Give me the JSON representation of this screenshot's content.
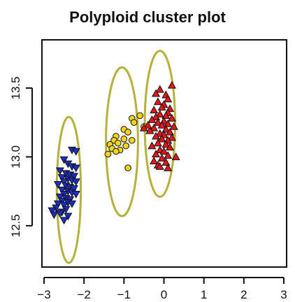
{
  "chart_data": {
    "type": "scatter",
    "title": "Polyploid cluster plot",
    "xlabel": "",
    "ylabel": "",
    "xlim": [
      -3,
      3
    ],
    "ylim": [
      12.2,
      13.85
    ],
    "x_ticks": [
      -3,
      -2,
      -1,
      0,
      1,
      2,
      3
    ],
    "x_tick_labels": [
      "−3",
      "−2",
      "−1",
      "0",
      "1",
      "2",
      "3"
    ],
    "y_ticks": [
      12.5,
      13.0,
      13.5
    ],
    "y_tick_labels": [
      "12.5",
      "13.0",
      "13.5"
    ],
    "grid": false,
    "ellipse_color": "#b5b23c",
    "series": [
      {
        "marker": "triangle-down",
        "color": "#1c2fc4",
        "points": [
          [
            -2.3,
            13.05
          ],
          [
            -2.2,
            13.04
          ],
          [
            -2.5,
            12.98
          ],
          [
            -2.4,
            12.95
          ],
          [
            -2.3,
            12.93
          ],
          [
            -2.2,
            12.92
          ],
          [
            -2.6,
            12.9
          ],
          [
            -2.45,
            12.88
          ],
          [
            -2.35,
            12.87
          ],
          [
            -2.25,
            12.86
          ],
          [
            -2.55,
            12.85
          ],
          [
            -2.4,
            12.84
          ],
          [
            -2.3,
            12.83
          ],
          [
            -2.5,
            12.82
          ],
          [
            -2.2,
            12.82
          ],
          [
            -2.65,
            12.8
          ],
          [
            -2.45,
            12.79
          ],
          [
            -2.35,
            12.78
          ],
          [
            -2.25,
            12.77
          ],
          [
            -2.55,
            12.76
          ],
          [
            -2.4,
            12.75
          ],
          [
            -2.3,
            12.74
          ],
          [
            -2.5,
            12.73
          ],
          [
            -2.2,
            12.73
          ],
          [
            -2.6,
            12.71
          ],
          [
            -2.45,
            12.7
          ],
          [
            -2.35,
            12.69
          ],
          [
            -2.55,
            12.68
          ],
          [
            -2.4,
            12.67
          ],
          [
            -2.65,
            12.66
          ],
          [
            -2.3,
            12.66
          ],
          [
            -2.5,
            12.65
          ],
          [
            -2.7,
            12.63
          ],
          [
            -2.45,
            12.62
          ],
          [
            -2.8,
            12.61
          ],
          [
            -2.55,
            12.6
          ],
          [
            -2.6,
            12.59
          ],
          [
            -2.4,
            12.57
          ],
          [
            -2.75,
            12.58
          ],
          [
            -2.5,
            12.54
          ]
        ]
      },
      {
        "marker": "circle",
        "color": "#f2d41c",
        "points": [
          [
            -0.6,
            13.3
          ],
          [
            -0.8,
            13.28
          ],
          [
            -0.75,
            13.25
          ],
          [
            -1.0,
            13.2
          ],
          [
            -0.5,
            13.22
          ],
          [
            -0.9,
            13.18
          ],
          [
            -1.2,
            13.15
          ],
          [
            -1.0,
            13.13
          ],
          [
            -0.8,
            13.12
          ],
          [
            -1.25,
            13.12
          ],
          [
            -1.15,
            13.1
          ],
          [
            -1.35,
            13.09
          ],
          [
            -0.95,
            13.08
          ],
          [
            -1.3,
            13.06
          ],
          [
            -1.1,
            13.05
          ],
          [
            -1.2,
            13.04
          ],
          [
            -1.4,
            13.02
          ],
          [
            -0.9,
            12.92
          ]
        ]
      },
      {
        "marker": "triangle-up",
        "color": "#e8141c",
        "points": [
          [
            -0.1,
            13.49
          ],
          [
            0.2,
            13.52
          ],
          [
            0.05,
            13.45
          ],
          [
            -0.2,
            13.46
          ],
          [
            0.1,
            13.42
          ],
          [
            -0.15,
            13.4
          ],
          [
            0.0,
            13.38
          ],
          [
            -0.05,
            13.36
          ],
          [
            0.15,
            13.35
          ],
          [
            -0.25,
            13.34
          ],
          [
            0.1,
            13.32
          ],
          [
            -0.1,
            13.31
          ],
          [
            0.05,
            13.3
          ],
          [
            -0.2,
            13.29
          ],
          [
            0.2,
            13.28
          ],
          [
            -0.3,
            13.27
          ],
          [
            0.0,
            13.26
          ],
          [
            -0.15,
            13.25
          ],
          [
            0.1,
            13.24
          ],
          [
            -0.05,
            13.23
          ],
          [
            0.25,
            13.22
          ],
          [
            -0.25,
            13.21
          ],
          [
            0.05,
            13.2
          ],
          [
            -0.35,
            13.19
          ],
          [
            0.15,
            13.18
          ],
          [
            -0.1,
            13.17
          ],
          [
            0.0,
            13.16
          ],
          [
            -0.2,
            13.15
          ],
          [
            0.2,
            13.14
          ],
          [
            -0.05,
            13.13
          ],
          [
            0.1,
            13.12
          ],
          [
            -0.15,
            13.1
          ],
          [
            0.05,
            13.09
          ],
          [
            -0.3,
            13.08
          ],
          [
            0.15,
            13.07
          ],
          [
            -0.1,
            13.05
          ],
          [
            0.0,
            13.04
          ],
          [
            -0.2,
            13.02
          ],
          [
            0.1,
            13.01
          ],
          [
            -0.05,
            12.99
          ],
          [
            -0.25,
            12.97
          ],
          [
            0.05,
            12.96
          ],
          [
            -0.15,
            12.94
          ],
          [
            -0.1,
            12.93
          ],
          [
            0.1,
            12.92
          ],
          [
            -0.4,
            13.23
          ],
          [
            -0.5,
            13.21
          ],
          [
            0.3,
            13.0
          ]
        ]
      }
    ],
    "ellipses": [
      {
        "cx": -2.38,
        "cy": 12.76,
        "rx": 0.3,
        "ry": 0.53
      },
      {
        "cx": -1.05,
        "cy": 13.11,
        "rx": 0.4,
        "ry": 0.54
      },
      {
        "cx": -0.1,
        "cy": 13.24,
        "rx": 0.38,
        "ry": 0.53
      }
    ]
  }
}
